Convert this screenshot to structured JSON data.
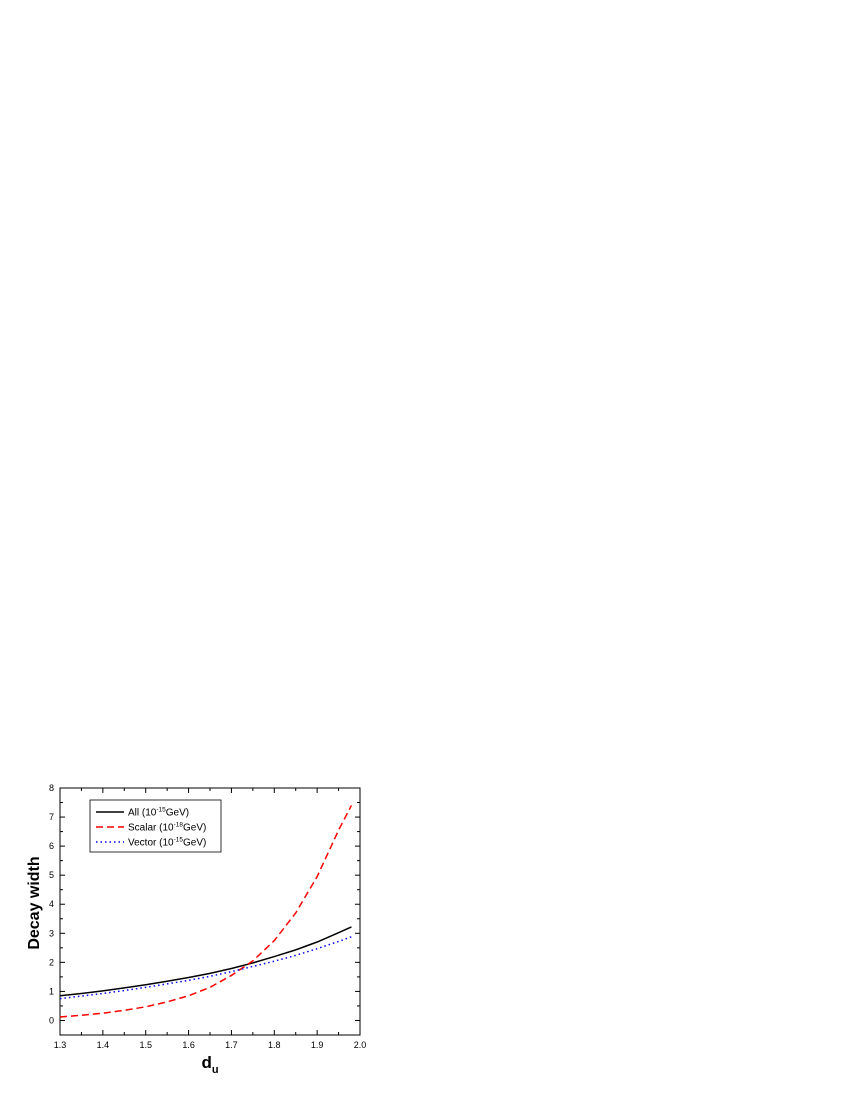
{
  "chart_data": {
    "type": "line",
    "xlabel": "d",
    "xlabel_sub": "u",
    "ylabel": "Decay width",
    "xlim": [
      1.3,
      2.0
    ],
    "ylim": [
      -0.5,
      8
    ],
    "x_ticks": [
      "1.3",
      "1.4",
      "1.5",
      "1.6",
      "1.7",
      "1.8",
      "1.9",
      "2.0"
    ],
    "y_ticks": [
      "0",
      "1",
      "2",
      "3",
      "4",
      "5",
      "6",
      "7",
      "8"
    ],
    "grid": false,
    "legend_position": "top-left",
    "series": [
      {
        "name": "All (10<sup>-15</sup>GeV)",
        "legend_pre": "All (10",
        "legend_sup": "-15",
        "legend_post": "GeV)",
        "color": "#000000",
        "style": "solid",
        "x": [
          1.3,
          1.35,
          1.4,
          1.45,
          1.5,
          1.55,
          1.6,
          1.65,
          1.7,
          1.75,
          1.8,
          1.85,
          1.9,
          1.95,
          1.98
        ],
        "y": [
          0.85,
          0.93,
          1.02,
          1.12,
          1.23,
          1.35,
          1.48,
          1.62,
          1.79,
          1.98,
          2.2,
          2.43,
          2.7,
          3.02,
          3.22
        ]
      },
      {
        "name": "Scalar (10-18GeV)",
        "legend_pre": "Scalar (10",
        "legend_sup": "-18",
        "legend_post": "GeV)",
        "color": "#ff0000",
        "style": "dashed",
        "x": [
          1.3,
          1.35,
          1.4,
          1.45,
          1.5,
          1.55,
          1.6,
          1.65,
          1.7,
          1.75,
          1.8,
          1.85,
          1.9,
          1.95,
          1.98
        ],
        "y": [
          0.12,
          0.18,
          0.25,
          0.35,
          0.47,
          0.64,
          0.85,
          1.14,
          1.55,
          2.05,
          2.75,
          3.7,
          4.95,
          6.55,
          7.4
        ]
      },
      {
        "name": "Vector (10-15GeV)",
        "legend_pre": "Vector (10",
        "legend_sup": "-15",
        "legend_post": "GeV)",
        "color": "#0000ff",
        "style": "dotted",
        "x": [
          1.3,
          1.35,
          1.4,
          1.45,
          1.5,
          1.55,
          1.6,
          1.65,
          1.7,
          1.75,
          1.8,
          1.85,
          1.9,
          1.95,
          1.98
        ],
        "y": [
          0.75,
          0.84,
          0.93,
          1.03,
          1.14,
          1.26,
          1.38,
          1.52,
          1.68,
          1.86,
          2.04,
          2.24,
          2.47,
          2.72,
          2.88
        ]
      }
    ]
  }
}
